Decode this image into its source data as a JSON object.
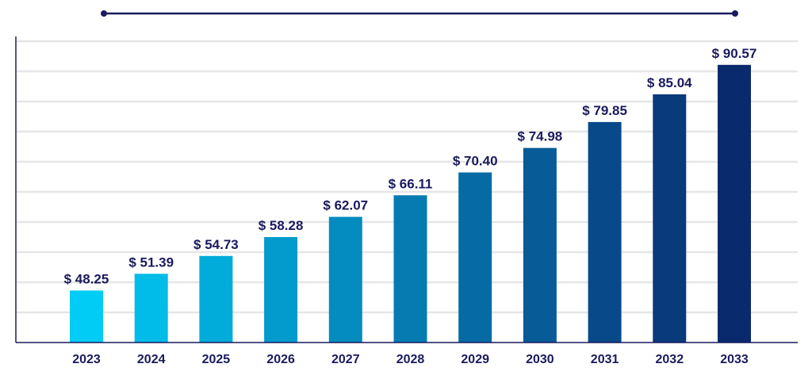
{
  "chart_data": {
    "type": "bar",
    "title": "",
    "xlabel": "",
    "ylabel": "",
    "categories": [
      "2023",
      "2024",
      "2025",
      "2026",
      "2027",
      "2028",
      "2029",
      "2030",
      "2031",
      "2032",
      "2033"
    ],
    "values": [
      48.25,
      51.39,
      54.73,
      58.28,
      62.07,
      66.11,
      70.4,
      74.98,
      79.85,
      85.04,
      90.57
    ],
    "value_labels": [
      "$ 48.25",
      "$ 51.39",
      "$ 54.73",
      "$ 58.28",
      "$ 62.07",
      "$ 66.11",
      "$ 70.40",
      "$ 74.98",
      "$ 79.85",
      "$ 85.04",
      "$ 90.57"
    ],
    "ylim": [
      38.5,
      95
    ],
    "grid": true,
    "legend": "none"
  },
  "colors": {
    "bar_start": "#00ccf5",
    "bar_end": "#0a2a6e",
    "label": "#1a1a5e",
    "grid": "#e6e6e6",
    "axis": "#1a1a5e",
    "decor_line": "#1a1a5e"
  }
}
